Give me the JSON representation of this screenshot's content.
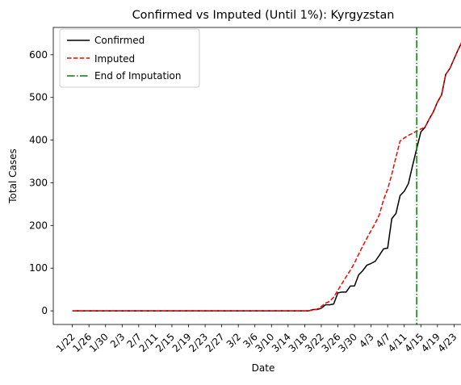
{
  "chart_data": {
    "type": "line",
    "title": "Confirmed vs Imputed (Until 1%): Kyrgyzstan",
    "xlabel": "Date",
    "ylabel": "Total Cases",
    "x_tick_labels": [
      "1/22",
      "1/26",
      "1/30",
      "2/3",
      "2/7",
      "2/11",
      "2/15",
      "2/19",
      "2/23",
      "2/27",
      "3/2",
      "3/6",
      "3/10",
      "3/14",
      "3/18",
      "3/22",
      "3/26",
      "3/30",
      "4/3",
      "4/7",
      "4/11",
      "4/15",
      "4/19",
      "4/23"
    ],
    "x_tick_day_index": [
      0,
      4,
      8,
      12,
      16,
      20,
      24,
      28,
      32,
      36,
      40,
      44,
      48,
      52,
      56,
      60,
      64,
      68,
      72,
      76,
      80,
      84,
      88,
      92
    ],
    "xlim": [
      -4.6,
      96.6
    ],
    "y_ticks": [
      0,
      100,
      200,
      300,
      400,
      500,
      600
    ],
    "ylim": [
      -32,
      664
    ],
    "grid": false,
    "legend_position": "top-left",
    "end_of_imputation_x": 83,
    "series": [
      {
        "name": "Confirmed",
        "color": "#000000",
        "style": "solid",
        "values": [
          0,
          0,
          0,
          0,
          0,
          0,
          0,
          0,
          0,
          0,
          0,
          0,
          0,
          0,
          0,
          0,
          0,
          0,
          0,
          0,
          0,
          0,
          0,
          0,
          0,
          0,
          0,
          0,
          0,
          0,
          0,
          0,
          0,
          0,
          0,
          0,
          0,
          0,
          0,
          0,
          0,
          0,
          0,
          0,
          0,
          0,
          0,
          0,
          0,
          0,
          0,
          0,
          0,
          0,
          0,
          0,
          0,
          0,
          3,
          3,
          6,
          14,
          14,
          16,
          42,
          44,
          44,
          58,
          58,
          84,
          94,
          107,
          111,
          116,
          130,
          145,
          147,
          216,
          228,
          270,
          280,
          298,
          340,
          380,
          419,
          430,
          449,
          466,
          489,
          506,
          554,
          568,
          590,
          612,
          632
        ]
      },
      {
        "name": "Imputed",
        "color": "#ff0000",
        "style": "dashed",
        "values": [
          0,
          0,
          0,
          0,
          0,
          0,
          0,
          0,
          0,
          0,
          0,
          0,
          0,
          0,
          0,
          0,
          0,
          0,
          0,
          0,
          0,
          0,
          0,
          0,
          0,
          0,
          0,
          0,
          0,
          0,
          0,
          0,
          0,
          0,
          0,
          0,
          0,
          0,
          0,
          0,
          0,
          0,
          0,
          0,
          0,
          0,
          0,
          0,
          0,
          0,
          0,
          0,
          0,
          0,
          0,
          0,
          0,
          0,
          2,
          4,
          10,
          18,
          22,
          32,
          48,
          64,
          80,
          95,
          112,
          132,
          152,
          170,
          188,
          205,
          225,
          260,
          285,
          320,
          360,
          398,
          405,
          411,
          416,
          421,
          426,
          430,
          449,
          466,
          489,
          506,
          554,
          568,
          590,
          612,
          632
        ]
      },
      {
        "name": "End of Imputation",
        "color": "#008000",
        "style": "dashdot"
      }
    ]
  }
}
